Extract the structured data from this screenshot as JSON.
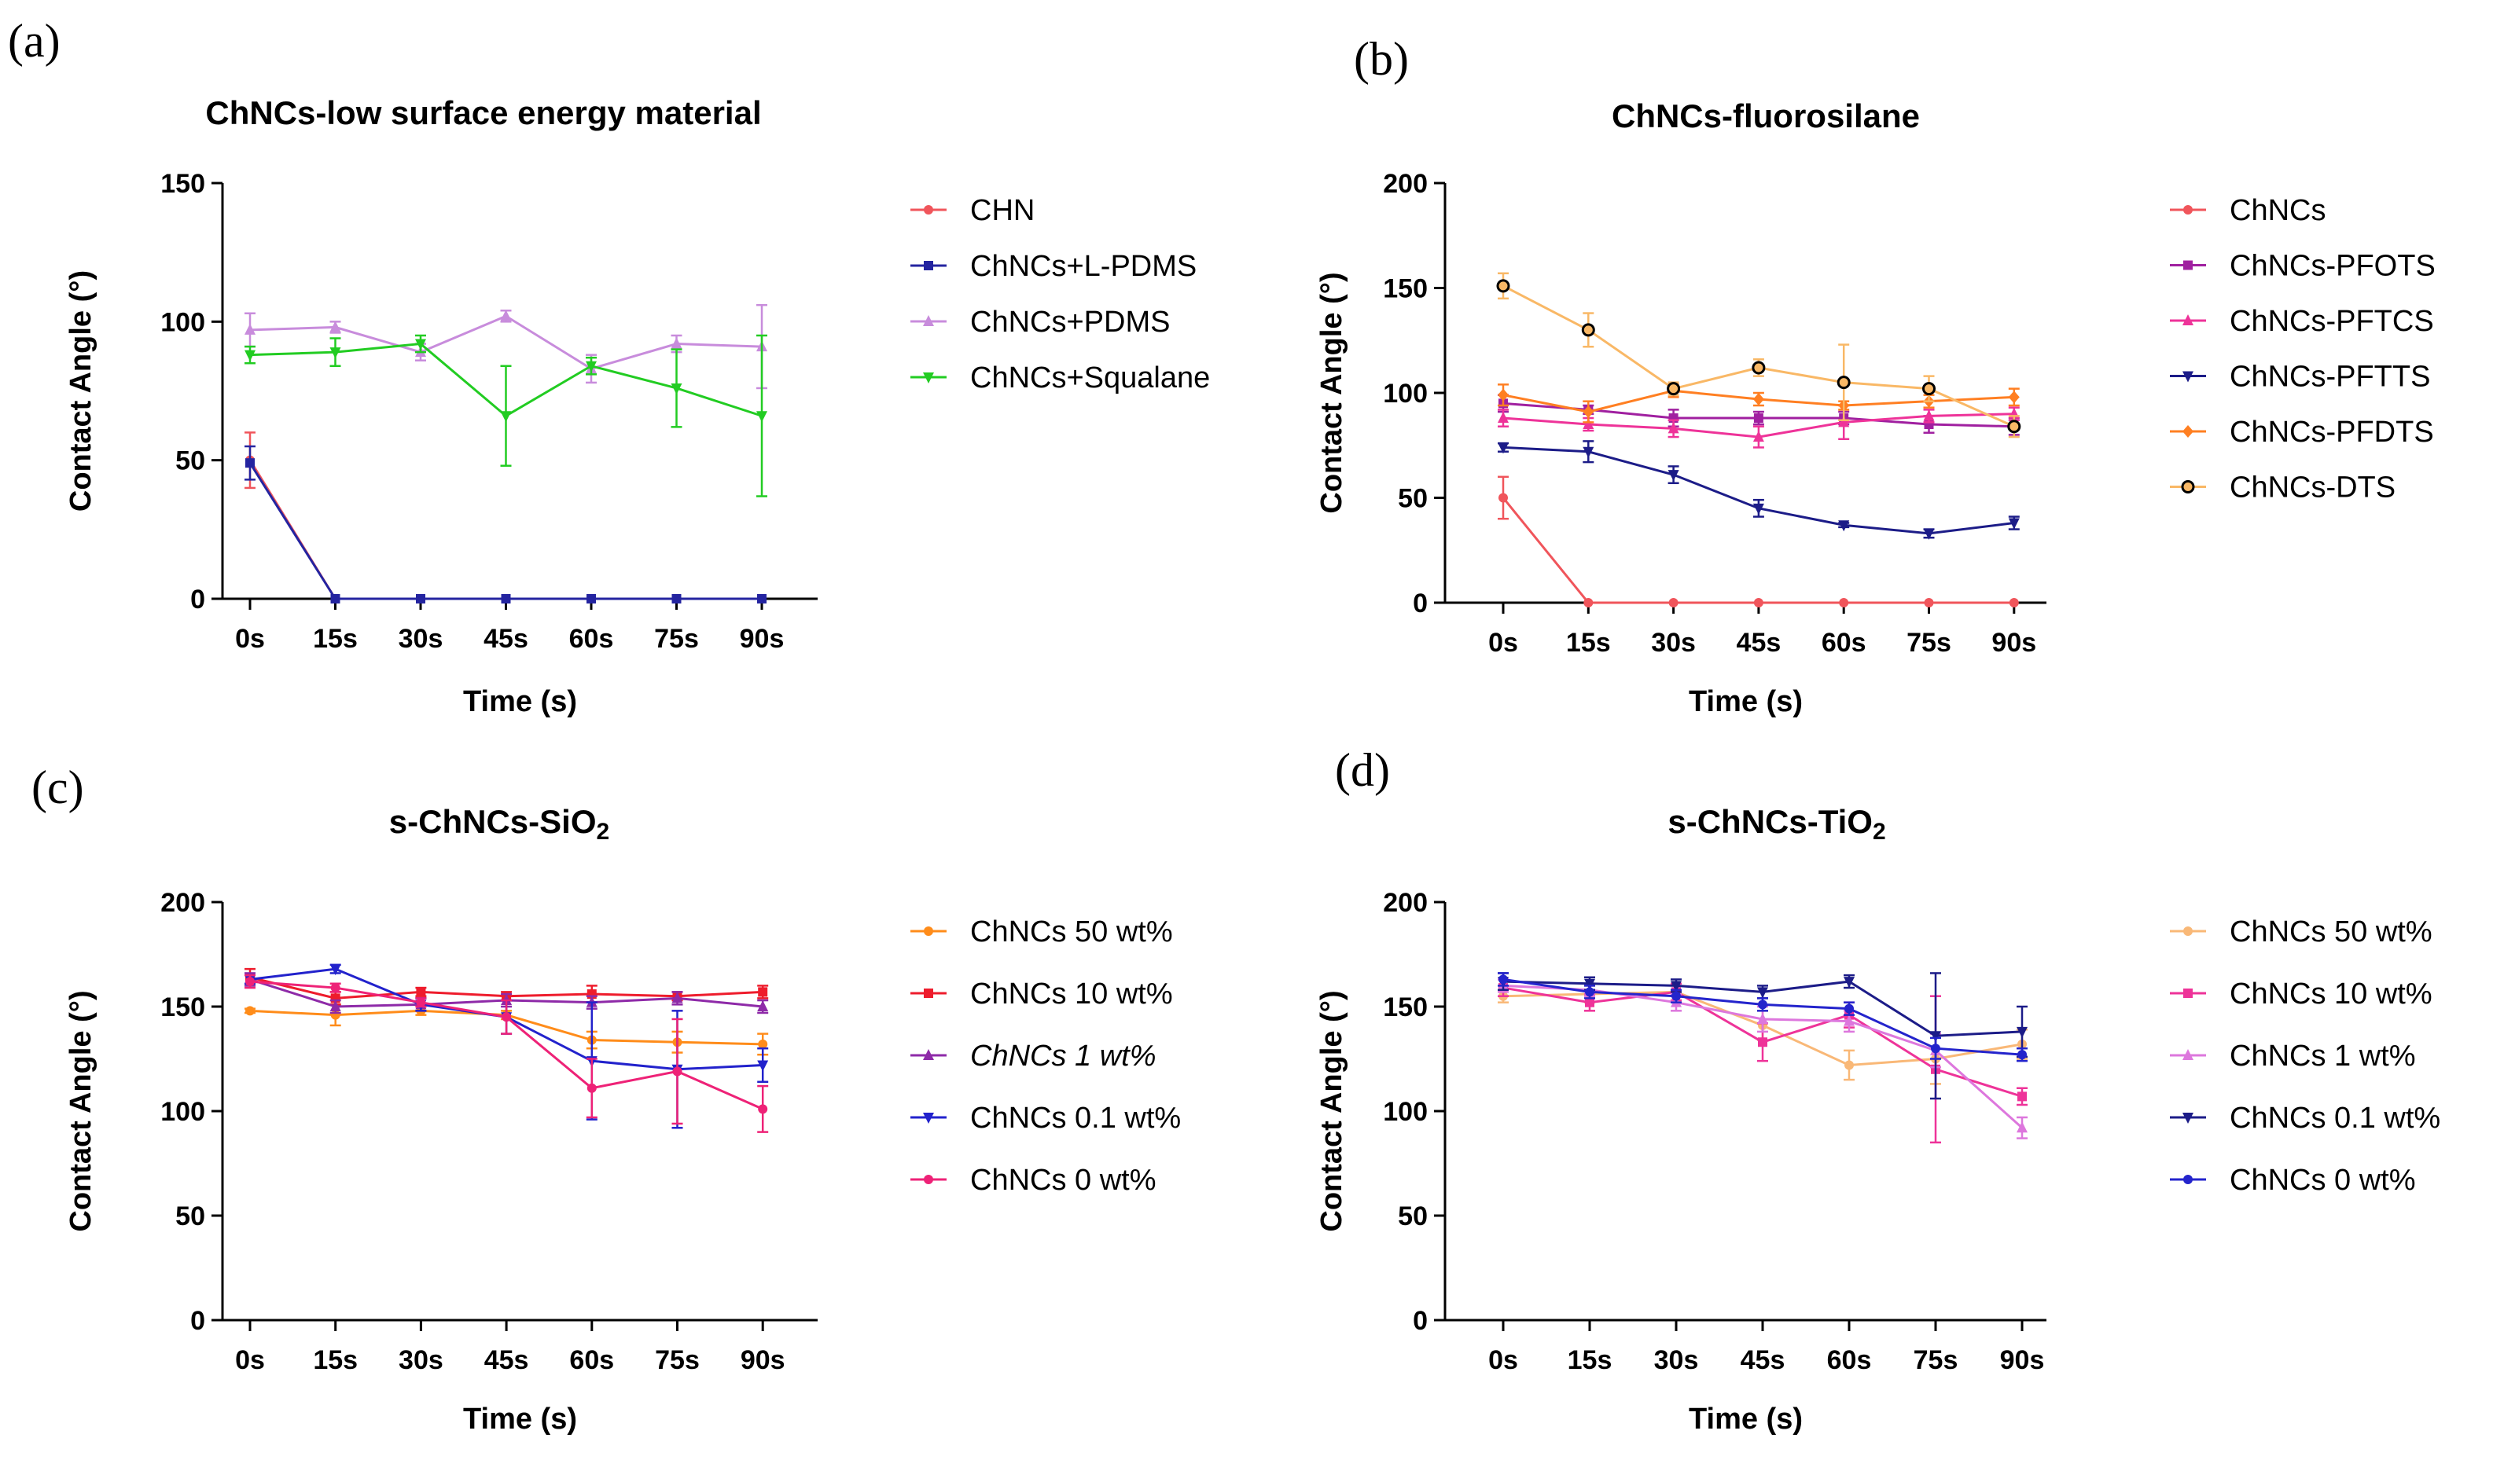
{
  "chart_data": [
    {
      "type": "line",
      "panel_label": "(a)",
      "title": "ChNCs-low surface energy material",
      "xlabel": "Time (s)",
      "ylabel": "Contact Angle (°)",
      "ylim": [
        0,
        150
      ],
      "yticks": [
        "0",
        "50",
        "100",
        "150"
      ],
      "categories": [
        "0s",
        "15s",
        "30s",
        "45s",
        "60s",
        "75s",
        "90s"
      ],
      "series": [
        {
          "name": "CHN",
          "color": "#f0555b",
          "marker": "circle",
          "values": [
            50,
            0,
            0,
            0,
            0,
            0,
            0
          ],
          "errors": [
            10,
            0,
            0,
            0,
            0,
            0,
            0
          ]
        },
        {
          "name": "ChNCs+L-PDMS",
          "color": "#2424a0",
          "marker": "square",
          "values": [
            49,
            0,
            0,
            0,
            0,
            0,
            0
          ],
          "errors": [
            6,
            0,
            0,
            0,
            0,
            0,
            0
          ]
        },
        {
          "name": "ChNCs+PDMS",
          "color": "#c88cdc",
          "marker": "triangle-up",
          "values": [
            97,
            98,
            89,
            102,
            83,
            92,
            91
          ],
          "errors": [
            6,
            2,
            3,
            2,
            5,
            3,
            15
          ]
        },
        {
          "name": "ChNCs+Squalane",
          "color": "#22cc22",
          "marker": "triangle-down",
          "values": [
            88,
            89,
            92,
            66,
            84,
            76,
            66
          ],
          "errors": [
            3,
            5,
            3,
            18,
            3,
            14,
            29
          ]
        }
      ]
    },
    {
      "type": "line",
      "panel_label": "(b)",
      "title": "ChNCs-fluorosilane",
      "xlabel": "Time (s)",
      "ylabel": "Contact Angle (°)",
      "ylim": [
        0,
        200
      ],
      "yticks": [
        "0",
        "50",
        "100",
        "150",
        "200"
      ],
      "categories": [
        "0s",
        "15s",
        "30s",
        "45s",
        "60s",
        "75s",
        "90s"
      ],
      "series": [
        {
          "name": "ChNCs",
          "color": "#f0555b",
          "marker": "circle",
          "values": [
            50,
            0,
            0,
            0,
            0,
            0,
            0
          ],
          "errors": [
            10,
            0,
            0,
            0,
            0,
            0,
            0
          ]
        },
        {
          "name": "ChNCs-PFOTS",
          "color": "#a020a0",
          "marker": "square",
          "values": [
            95,
            92,
            88,
            88,
            88,
            85,
            84
          ],
          "errors": [
            4,
            2,
            4,
            3,
            3,
            4,
            4
          ]
        },
        {
          "name": "ChNCs-PFTCS",
          "color": "#ee3399",
          "marker": "triangle-up",
          "values": [
            88,
            85,
            83,
            79,
            86,
            89,
            90
          ],
          "errors": [
            4,
            3,
            4,
            5,
            8,
            3,
            3
          ]
        },
        {
          "name": "ChNCs-PFTTS",
          "color": "#1c1c88",
          "marker": "triangle-down",
          "values": [
            74,
            72,
            61,
            45,
            37,
            33,
            38
          ],
          "errors": [
            2,
            5,
            4,
            4,
            1,
            2,
            3
          ]
        },
        {
          "name": "ChNCs-PFDTS",
          "color": "#ff7f22",
          "marker": "diamond",
          "values": [
            99,
            91,
            101,
            97,
            94,
            96,
            98
          ],
          "errors": [
            5,
            5,
            3,
            3,
            2,
            3,
            4
          ]
        },
        {
          "name": "ChNCs-DTS",
          "color": "#f9b866",
          "marker": "hollow-circle",
          "values": [
            151,
            130,
            102,
            112,
            105,
            102,
            84
          ],
          "errors": [
            6,
            8,
            3,
            4,
            18,
            6,
            5
          ]
        }
      ]
    },
    {
      "type": "line",
      "panel_label": "(c)",
      "title": "s-ChNCs-SiO",
      "title_sub": "2",
      "xlabel": "Time (s)",
      "ylabel": "Contact Angle (°)",
      "ylim": [
        0,
        200
      ],
      "yticks": [
        "0",
        "50",
        "100",
        "150",
        "200"
      ],
      "categories": [
        "0s",
        "15s",
        "30s",
        "45s",
        "60s",
        "75s",
        "90s"
      ],
      "series": [
        {
          "name": "ChNCs 50 wt%",
          "color": "#ff8c1a",
          "marker": "circle",
          "values": [
            148,
            146,
            148,
            146,
            134,
            133,
            132
          ],
          "errors": [
            1,
            5,
            2,
            2,
            4,
            5,
            5
          ],
          "italic": false
        },
        {
          "name": "ChNCs 10 wt%",
          "color": "#ee1c2c",
          "marker": "square",
          "values": [
            164,
            154,
            157,
            155,
            156,
            155,
            157
          ],
          "errors": [
            4,
            3,
            2,
            2,
            4,
            2,
            3
          ],
          "italic": false
        },
        {
          "name": "ChNCs 1 wt%",
          "color": "#8e2aa8",
          "marker": "triangle-up",
          "values": [
            163,
            150,
            151,
            153,
            152,
            154,
            150
          ],
          "errors": [
            3,
            3,
            3,
            3,
            3,
            3,
            3
          ],
          "italic": true
        },
        {
          "name": "ChNCs 0.1 wt%",
          "color": "#2222cc",
          "marker": "triangle-down",
          "values": [
            163,
            168,
            151,
            145,
            124,
            120,
            122
          ],
          "errors": [
            2,
            2,
            3,
            8,
            28,
            28,
            8
          ],
          "italic": false
        },
        {
          "name": "ChNCs 0 wt%",
          "color": "#ee2277",
          "marker": "circle",
          "values": [
            162,
            159,
            152,
            145,
            111,
            119,
            101
          ],
          "errors": [
            3,
            2,
            2,
            8,
            14,
            25,
            11
          ],
          "italic": false
        }
      ]
    },
    {
      "type": "line",
      "panel_label": "(d)",
      "title": "s-ChNCs-TiO",
      "title_sub": "2",
      "xlabel": "Time (s)",
      "ylabel": "Contact Angle (°)",
      "ylim": [
        0,
        200
      ],
      "yticks": [
        "0",
        "50",
        "100",
        "150",
        "200"
      ],
      "categories": [
        "0s",
        "15s",
        "30s",
        "45s",
        "60s",
        "75s",
        "90s"
      ],
      "series": [
        {
          "name": "ChNCs 50 wt%",
          "color": "#f9b877",
          "marker": "circle",
          "values": [
            155,
            156,
            157,
            141,
            122,
            125,
            132
          ],
          "errors": [
            3,
            4,
            4,
            7,
            7,
            12,
            7
          ]
        },
        {
          "name": "ChNCs 10 wt%",
          "color": "#ee3399",
          "marker": "square",
          "values": [
            159,
            152,
            157,
            133,
            146,
            120,
            107
          ],
          "errors": [
            4,
            4,
            4,
            9,
            6,
            35,
            4
          ]
        },
        {
          "name": "ChNCs 1 wt%",
          "color": "#dd77dd",
          "marker": "triangle-up",
          "values": [
            160,
            158,
            152,
            144,
            143,
            129,
            92
          ],
          "errors": [
            3,
            3,
            4,
            6,
            5,
            8,
            5
          ]
        },
        {
          "name": "ChNCs 0.1 wt%",
          "color": "#1c1c88",
          "marker": "triangle-down",
          "values": [
            162,
            161,
            160,
            157,
            162,
            136,
            138
          ],
          "errors": [
            4,
            3,
            3,
            3,
            3,
            30,
            12
          ]
        },
        {
          "name": "ChNCs 0 wt%",
          "color": "#2424cc",
          "marker": "circle",
          "values": [
            163,
            157,
            155,
            151,
            149,
            130,
            127
          ],
          "errors": [
            3,
            3,
            3,
            3,
            3,
            5,
            3
          ]
        }
      ]
    }
  ]
}
